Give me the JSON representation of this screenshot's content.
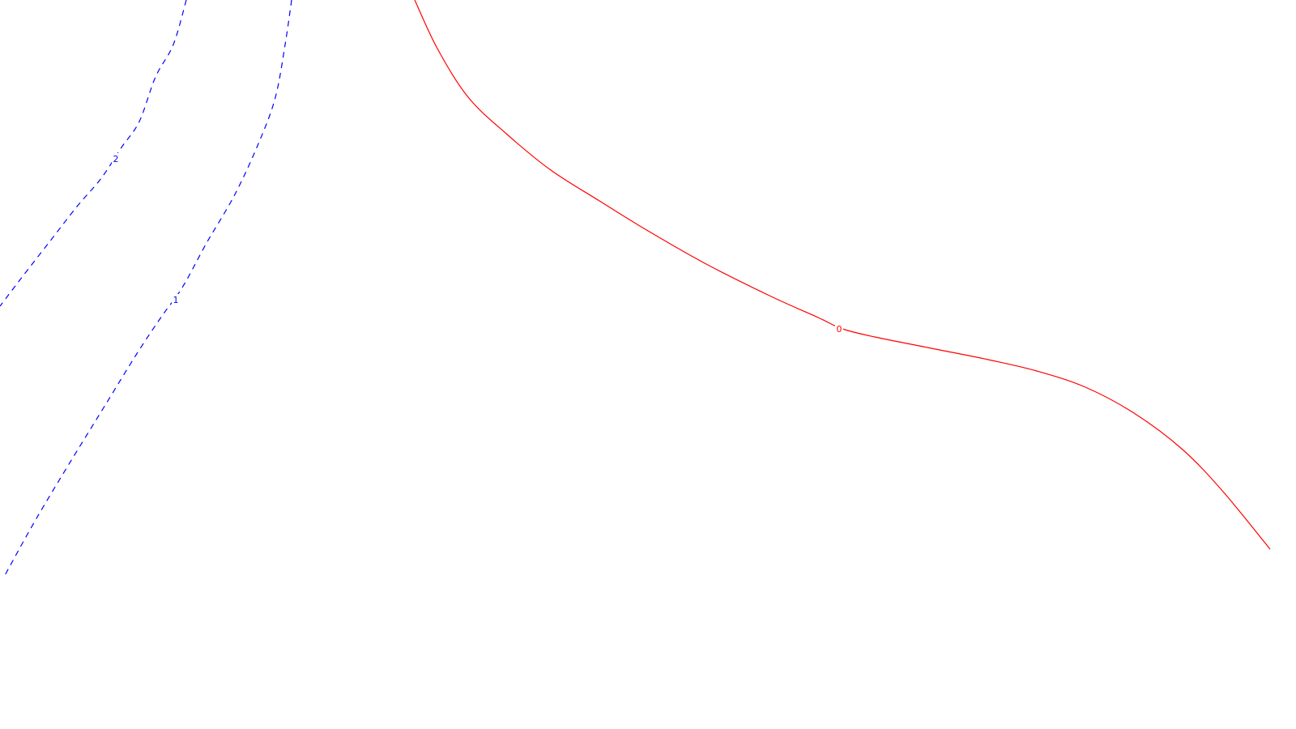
{
  "chart_data": {
    "type": "contour",
    "title": "",
    "xlabel": "",
    "ylabel": "",
    "grid": false,
    "series": [
      {
        "level": "2",
        "color": "#0000ff",
        "line_style": "dashed",
        "points": [
          [
            230,
            0
          ],
          [
            214,
            55
          ],
          [
            192,
            95
          ],
          [
            172,
            150
          ],
          [
            150,
            182
          ],
          [
            125,
            220
          ],
          [
            95,
            255
          ],
          [
            60,
            300
          ],
          [
            25,
            345
          ],
          [
            0,
            378
          ]
        ]
      },
      {
        "level": "1",
        "color": "#0000ff",
        "line_style": "dashed",
        "points": [
          [
            360,
            0
          ],
          [
            352,
            55
          ],
          [
            340,
            120
          ],
          [
            320,
            175
          ],
          [
            290,
            240
          ],
          [
            255,
            300
          ],
          [
            225,
            355
          ],
          [
            200,
            390
          ],
          [
            170,
            435
          ],
          [
            130,
            500
          ],
          [
            90,
            565
          ],
          [
            45,
            640
          ],
          [
            5,
            712
          ]
        ]
      },
      {
        "level": "0",
        "color": "#ff0000",
        "line_style": "solid",
        "points": [
          [
            512,
            0
          ],
          [
            540,
            60
          ],
          [
            578,
            120
          ],
          [
            625,
            165
          ],
          [
            680,
            210
          ],
          [
            740,
            248
          ],
          [
            800,
            285
          ],
          [
            870,
            325
          ],
          [
            950,
            365
          ],
          [
            1010,
            392
          ],
          [
            1040,
            406
          ],
          [
            1080,
            416
          ],
          [
            1150,
            430
          ],
          [
            1220,
            444
          ],
          [
            1280,
            458
          ],
          [
            1340,
            478
          ],
          [
            1400,
            510
          ],
          [
            1460,
            555
          ],
          [
            1510,
            607
          ],
          [
            1568,
            678
          ]
        ]
      }
    ],
    "labels": [
      {
        "text": "2",
        "series": 0,
        "at": [
          143,
          196
        ]
      },
      {
        "text": "1",
        "series": 1,
        "at": [
          217,
          370
        ]
      },
      {
        "text": "0",
        "series": 2,
        "at": [
          1036,
          406
        ]
      }
    ]
  }
}
